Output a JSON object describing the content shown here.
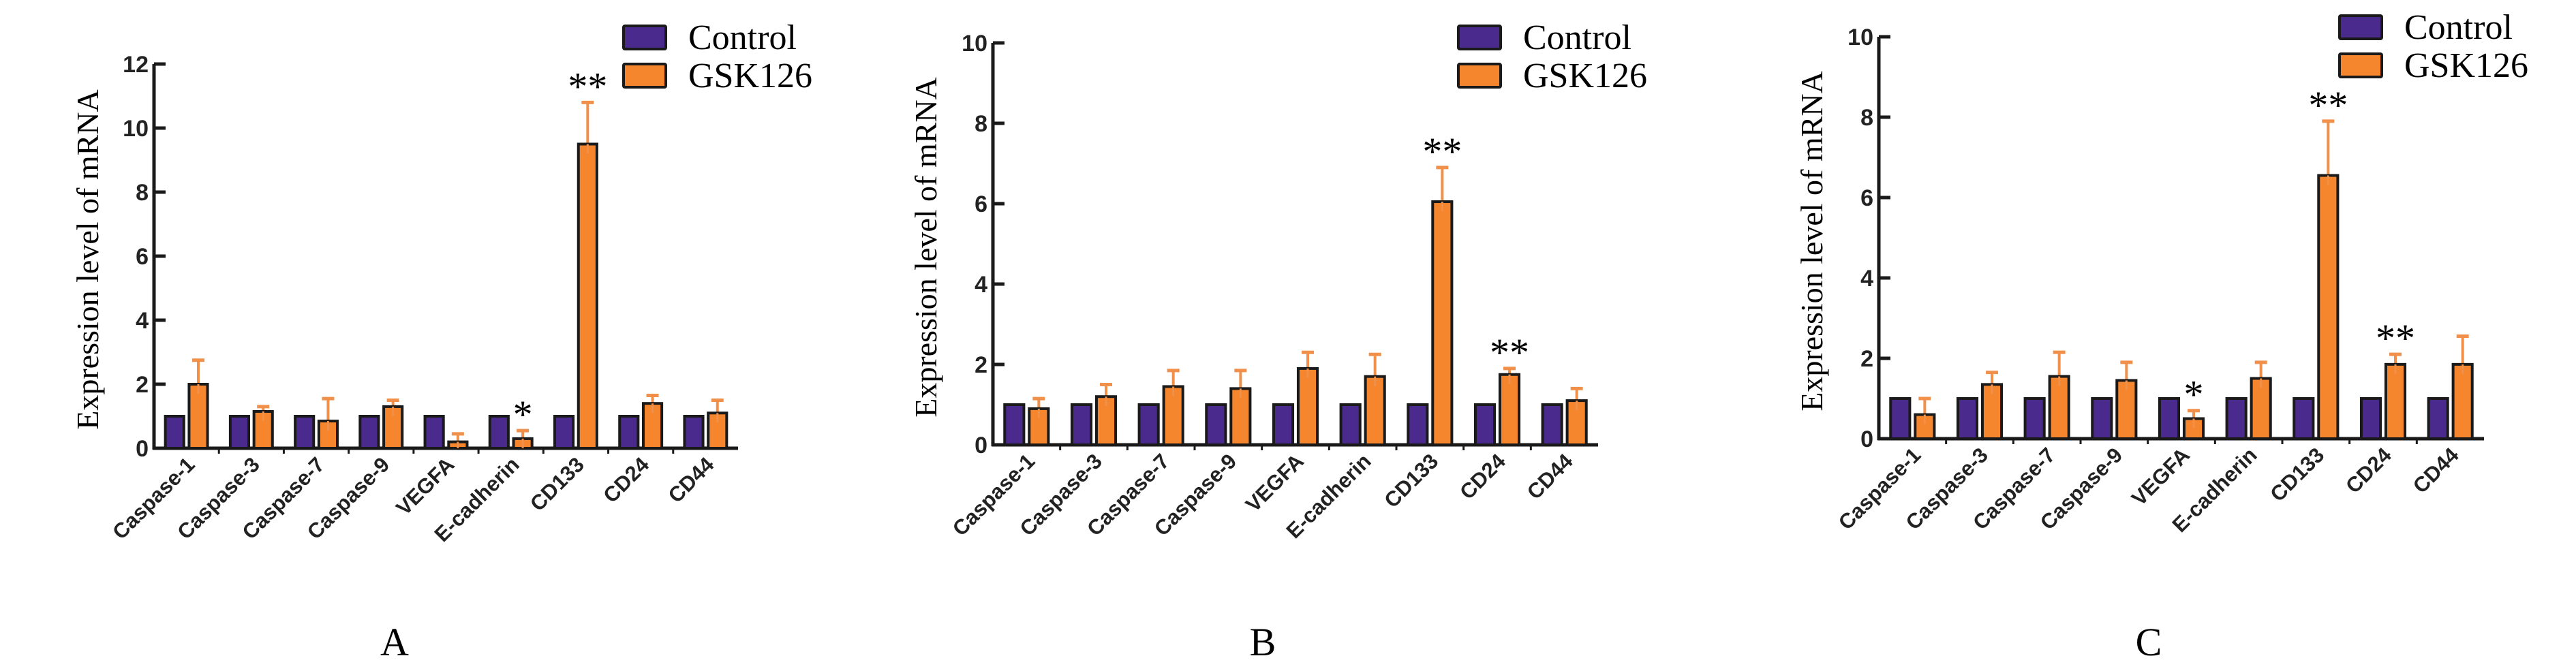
{
  "colors": {
    "control": "#4B2A8E",
    "gsk126": "#F5862E",
    "error_bar": "#F0904A",
    "axis": "#1a1a1a",
    "bar_border": "#1a1a1a"
  },
  "chart_data": [
    {
      "type": "bar",
      "panel_label": "A",
      "ylabel": "Expression level of mRNA",
      "xlabel": "",
      "ylim": [
        0,
        12
      ],
      "yticks": [
        "0",
        "2",
        "4",
        "6",
        "8",
        "10",
        "12"
      ],
      "ytick_values": [
        0,
        2,
        4,
        6,
        8,
        10,
        12
      ],
      "legend": {
        "position": "top-right",
        "entries": [
          "Control",
          "GSK126"
        ]
      },
      "categories": [
        "Caspase-1",
        "Caspase-3",
        "Caspase-7",
        "Caspase-9",
        "VEGFA",
        "E-cadherin",
        "CD133",
        "CD24",
        "CD44"
      ],
      "series": [
        {
          "name": "Control",
          "values": [
            1,
            1,
            1,
            1,
            1,
            1,
            1,
            1,
            1
          ],
          "error": [
            0,
            0,
            0,
            0,
            0,
            0,
            0,
            0,
            0
          ]
        },
        {
          "name": "GSK126",
          "values": [
            2.0,
            1.15,
            0.85,
            1.3,
            0.2,
            0.3,
            9.5,
            1.4,
            1.1
          ],
          "error": [
            0.75,
            0.15,
            0.7,
            0.2,
            0.25,
            0.25,
            1.3,
            0.25,
            0.4
          ]
        }
      ],
      "annotations": [
        "",
        "",
        "",
        "",
        "",
        "*",
        "**",
        "",
        ""
      ]
    },
    {
      "type": "bar",
      "panel_label": "B",
      "ylabel": "Expression level of mRNA",
      "xlabel": "",
      "ylim": [
        0,
        10
      ],
      "yticks": [
        "0",
        "2",
        "4",
        "6",
        "8",
        "10"
      ],
      "ytick_values": [
        0,
        2,
        4,
        6,
        8,
        10
      ],
      "legend": {
        "position": "top-right",
        "entries": [
          "Control",
          "GSK126"
        ]
      },
      "categories": [
        "Caspase-1",
        "Caspase-3",
        "Caspase-7",
        "Caspase-9",
        "VEGFA",
        "E-cadherin",
        "CD133",
        "CD24",
        "CD44"
      ],
      "series": [
        {
          "name": "Control",
          "values": [
            1,
            1,
            1,
            1,
            1,
            1,
            1,
            1,
            1
          ],
          "error": [
            0,
            0,
            0,
            0,
            0,
            0,
            0,
            0,
            0
          ]
        },
        {
          "name": "GSK126",
          "values": [
            0.9,
            1.2,
            1.45,
            1.4,
            1.9,
            1.7,
            6.05,
            1.75,
            1.1
          ],
          "error": [
            0.25,
            0.3,
            0.4,
            0.45,
            0.4,
            0.55,
            0.85,
            0.15,
            0.3
          ]
        }
      ],
      "annotations": [
        "",
        "",
        "",
        "",
        "",
        "",
        "**",
        "**",
        ""
      ]
    },
    {
      "type": "bar",
      "panel_label": "C",
      "ylabel": "Expression level of mRNA",
      "xlabel": "",
      "ylim": [
        0,
        10
      ],
      "yticks": [
        "0",
        "2",
        "4",
        "6",
        "8",
        "10"
      ],
      "ytick_values": [
        0,
        2,
        4,
        6,
        8,
        10
      ],
      "legend": {
        "position": "top-right",
        "entries": [
          "Control",
          "GSK126"
        ]
      },
      "categories": [
        "Caspase-1",
        "Caspase-3",
        "Caspase-7",
        "Caspase-9",
        "VEGFA",
        "E-cadherin",
        "CD133",
        "CD24",
        "CD44"
      ],
      "series": [
        {
          "name": "Control",
          "values": [
            1,
            1,
            1,
            1,
            1,
            1,
            1,
            1,
            1
          ],
          "error": [
            0,
            0,
            0,
            0,
            0,
            0,
            0,
            0,
            0
          ]
        },
        {
          "name": "GSK126",
          "values": [
            0.6,
            1.35,
            1.55,
            1.45,
            0.5,
            1.5,
            6.55,
            1.85,
            1.85
          ],
          "error": [
            0.4,
            0.3,
            0.6,
            0.45,
            0.2,
            0.4,
            1.35,
            0.25,
            0.7
          ]
        }
      ],
      "annotations": [
        "",
        "",
        "",
        "",
        "*",
        "",
        "**",
        "**",
        ""
      ]
    }
  ]
}
